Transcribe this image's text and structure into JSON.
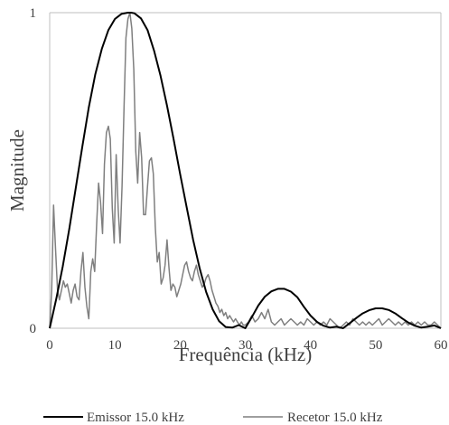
{
  "chart_data": {
    "type": "line",
    "xlabel": "Frequência (kHz)",
    "ylabel": "Magnitude",
    "xlim": [
      0,
      60
    ],
    "ylim": [
      0,
      1
    ],
    "x_ticks": [
      "0",
      "10",
      "20",
      "30",
      "40",
      "50",
      "60"
    ],
    "y_ticks": [
      "0",
      "1"
    ],
    "grid": false,
    "legend_position": "bottom",
    "series": [
      {
        "name": "Emissor 15.0 kHz",
        "color": "#000000",
        "x": [
          0,
          1,
          2,
          3,
          4,
          5,
          6,
          7,
          8,
          9,
          10,
          11,
          12,
          12.5,
          13,
          14,
          15,
          16,
          17,
          18,
          19,
          20,
          21,
          22,
          23,
          24,
          25,
          26,
          27,
          28,
          29,
          30,
          31,
          32,
          33,
          34,
          35,
          36,
          37,
          38,
          39,
          40,
          41,
          42,
          43,
          44,
          45,
          46,
          47,
          48,
          49,
          50,
          51,
          52,
          53,
          54,
          55,
          56,
          57,
          58,
          59,
          60
        ],
        "y": [
          0.0,
          0.092,
          0.195,
          0.315,
          0.445,
          0.575,
          0.7,
          0.805,
          0.885,
          0.945,
          0.98,
          0.996,
          1.0,
          1.0,
          0.998,
          0.982,
          0.945,
          0.88,
          0.8,
          0.705,
          0.6,
          0.49,
          0.385,
          0.28,
          0.19,
          0.115,
          0.06,
          0.022,
          0.004,
          0.002,
          0.01,
          0.0,
          0.035,
          0.072,
          0.1,
          0.117,
          0.125,
          0.125,
          0.116,
          0.098,
          0.068,
          0.04,
          0.02,
          0.008,
          0.002,
          0.005,
          0.0,
          0.016,
          0.032,
          0.047,
          0.057,
          0.063,
          0.063,
          0.058,
          0.047,
          0.032,
          0.018,
          0.008,
          0.002,
          0.005,
          0.009,
          0.0
        ]
      },
      {
        "name": "Recetor 15.0 kHz",
        "color": "#7f7f7f",
        "x": [
          0,
          0.3,
          0.6,
          0.9,
          1.2,
          1.5,
          1.8,
          2.1,
          2.4,
          2.7,
          3.0,
          3.3,
          3.6,
          3.9,
          4.2,
          4.5,
          4.8,
          5.1,
          5.4,
          5.7,
          6.0,
          6.3,
          6.6,
          6.9,
          7.2,
          7.5,
          7.8,
          8.1,
          8.4,
          8.7,
          9.0,
          9.3,
          9.6,
          9.9,
          10.2,
          10.5,
          10.8,
          11.1,
          11.4,
          11.7,
          12.0,
          12.3,
          12.6,
          12.9,
          13.2,
          13.5,
          13.8,
          14.1,
          14.4,
          14.7,
          15.0,
          15.3,
          15.6,
          15.9,
          16.2,
          16.5,
          16.8,
          17.1,
          17.4,
          17.7,
          18.0,
          18.3,
          18.6,
          18.9,
          19.2,
          19.5,
          19.8,
          20.1,
          20.4,
          20.7,
          21.0,
          21.3,
          21.6,
          21.9,
          22.2,
          22.5,
          22.8,
          23.1,
          23.4,
          23.7,
          24.0,
          24.3,
          24.6,
          24.9,
          25.2,
          25.5,
          25.8,
          26.1,
          26.4,
          26.7,
          27.0,
          27.3,
          27.6,
          27.9,
          28.2,
          28.5,
          28.8,
          29.1,
          29.4,
          29.7,
          30.0,
          30.5,
          31.0,
          31.5,
          32.0,
          32.5,
          33.0,
          33.5,
          34.0,
          34.5,
          35.0,
          35.5,
          36.0,
          36.5,
          37.0,
          37.5,
          38.0,
          38.5,
          39.0,
          39.5,
          40.0,
          40.5,
          41.0,
          41.5,
          42.0,
          42.5,
          43.0,
          43.5,
          44.0,
          44.5,
          45.0,
          45.5,
          46.0,
          46.5,
          47.0,
          47.5,
          48.0,
          48.5,
          49.0,
          49.5,
          50.0,
          50.5,
          51.0,
          51.5,
          52.0,
          52.5,
          53.0,
          53.5,
          54.0,
          54.5,
          55.0,
          55.5,
          56.0,
          56.5,
          57.0,
          57.5,
          58.0,
          58.5,
          59.0,
          59.5,
          60.0
        ],
        "y": [
          0.0,
          0.12,
          0.39,
          0.25,
          0.12,
          0.09,
          0.12,
          0.15,
          0.13,
          0.14,
          0.11,
          0.08,
          0.12,
          0.14,
          0.1,
          0.09,
          0.18,
          0.24,
          0.13,
          0.07,
          0.03,
          0.18,
          0.22,
          0.18,
          0.33,
          0.46,
          0.4,
          0.3,
          0.52,
          0.62,
          0.64,
          0.6,
          0.38,
          0.27,
          0.55,
          0.38,
          0.27,
          0.45,
          0.7,
          0.92,
          0.98,
          1.0,
          0.95,
          0.82,
          0.56,
          0.46,
          0.62,
          0.54,
          0.36,
          0.36,
          0.45,
          0.53,
          0.54,
          0.49,
          0.32,
          0.21,
          0.24,
          0.14,
          0.16,
          0.2,
          0.28,
          0.19,
          0.12,
          0.14,
          0.13,
          0.1,
          0.12,
          0.14,
          0.17,
          0.2,
          0.21,
          0.18,
          0.16,
          0.15,
          0.18,
          0.2,
          0.17,
          0.15,
          0.13,
          0.14,
          0.16,
          0.17,
          0.15,
          0.12,
          0.1,
          0.08,
          0.07,
          0.05,
          0.06,
          0.04,
          0.05,
          0.03,
          0.04,
          0.03,
          0.02,
          0.03,
          0.02,
          0.01,
          0.02,
          0.01,
          0.01,
          0.02,
          0.04,
          0.02,
          0.03,
          0.05,
          0.03,
          0.06,
          0.02,
          0.01,
          0.02,
          0.03,
          0.01,
          0.02,
          0.03,
          0.02,
          0.01,
          0.02,
          0.01,
          0.03,
          0.02,
          0.01,
          0.02,
          0.01,
          0.02,
          0.01,
          0.03,
          0.02,
          0.01,
          0.0,
          0.01,
          0.02,
          0.01,
          0.03,
          0.02,
          0.01,
          0.02,
          0.01,
          0.02,
          0.01,
          0.02,
          0.03,
          0.01,
          0.02,
          0.03,
          0.02,
          0.01,
          0.02,
          0.01,
          0.02,
          0.01,
          0.02,
          0.01,
          0.02,
          0.01,
          0.02,
          0.01,
          0.01,
          0.02,
          0.01,
          0.0
        ]
      }
    ]
  }
}
